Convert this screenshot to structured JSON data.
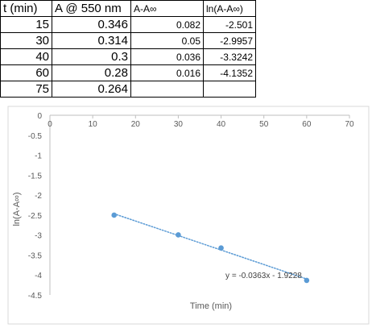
{
  "sheet": {
    "headers": [
      "t (min)",
      "A @ 550 nm",
      "A-A∞",
      "ln(A-A∞)"
    ],
    "rows": [
      [
        "15",
        "0.346",
        "0.082",
        "-2.501"
      ],
      [
        "30",
        "0.314",
        "0.05",
        "-2.9957"
      ],
      [
        "40",
        "0.3",
        "0.036",
        "-3.3242"
      ],
      [
        "60",
        "0.28",
        "0.016",
        "-4.1352"
      ],
      [
        "75",
        "0.264",
        "",
        ""
      ]
    ]
  },
  "chart_data": {
    "type": "scatter",
    "title": "",
    "xlabel": "Time (min)",
    "ylabel": "ln(A-A∞)",
    "xlim": [
      0,
      70
    ],
    "ylim": [
      -4.5,
      0
    ],
    "x_ticks": [
      "0",
      "10",
      "20",
      "30",
      "40",
      "50",
      "60",
      "70"
    ],
    "y_ticks": [
      "0",
      "-0.5",
      "-1",
      "-1.5",
      "-2",
      "-2.5",
      "-3",
      "-3.5",
      "-4",
      "-4.5"
    ],
    "grid": false,
    "series": [
      {
        "x": [
          15,
          30,
          40,
          60
        ],
        "y": [
          -2.501,
          -2.9957,
          -3.3242,
          -4.1352
        ],
        "color": "#5b9bd5"
      }
    ],
    "trendline": {
      "slope": -0.0363,
      "intercept": -1.9228,
      "equation": "y = -0.0363x - 1.9228",
      "style": "dotted",
      "color": "#5b9bd5"
    }
  }
}
